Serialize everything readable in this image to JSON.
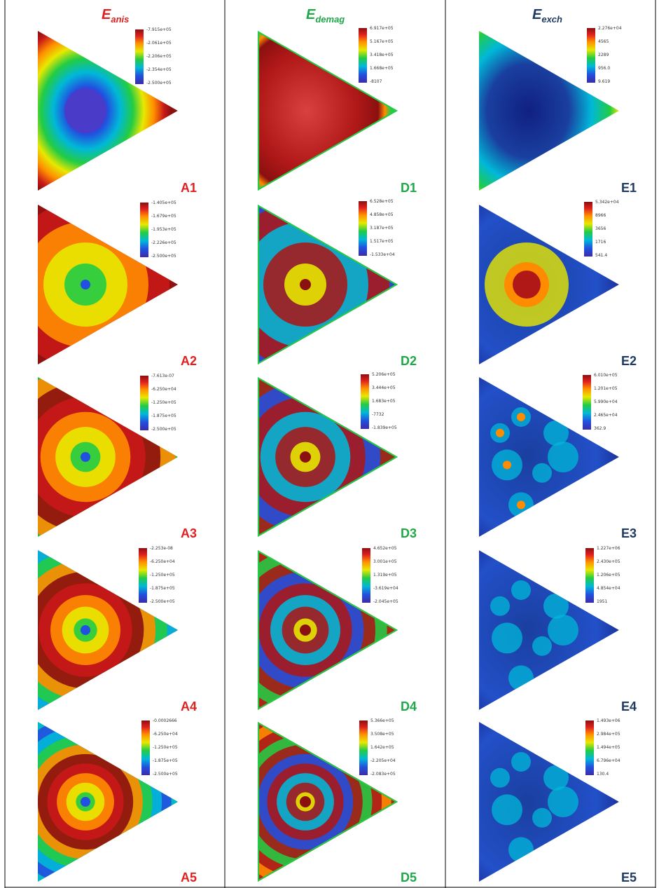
{
  "columns": [
    {
      "sym": "E",
      "sub": "anis",
      "color": "#e02020",
      "panels": [
        {
          "label": "A1",
          "ticks": [
            "-7.915e+05",
            "-2.061e+05",
            "-2.206e+05",
            "-2.354e+05",
            "-2.500e+05"
          ]
        },
        {
          "label": "A2",
          "ticks": [
            "-1.405e+05",
            "-1.679e+05",
            "-1.953e+05",
            "-2.226e+05",
            "-2.500e+05"
          ]
        },
        {
          "label": "A3",
          "ticks": [
            "-7.613e-07",
            "-6.250e+04",
            "-1.250e+05",
            "-1.875e+05",
            "-2.500e+05"
          ]
        },
        {
          "label": "A4",
          "ticks": [
            "-2.253e-08",
            "-6.250e+04",
            "-1.250e+05",
            "-1.875e+05",
            "-2.500e+05"
          ]
        },
        {
          "label": "A5",
          "ticks": [
            "-0.0002666",
            "-6.250e+04",
            "-1.250e+05",
            "-1.875e+05",
            "-2.500e+05"
          ]
        }
      ]
    },
    {
      "sym": "E",
      "sub": "demag",
      "color": "#1fa84a",
      "panels": [
        {
          "label": "D1",
          "ticks": [
            "6.917e+05",
            "5.167e+05",
            "3.418e+05",
            "1.668e+05",
            "-8107"
          ]
        },
        {
          "label": "D2",
          "ticks": [
            "6.528e+05",
            "4.858e+05",
            "3.187e+05",
            "1.517e+05",
            "-1.533e+04"
          ]
        },
        {
          "label": "D3",
          "ticks": [
            "5.206e+05",
            "3.444e+05",
            "1.683e+05",
            "-7732",
            "-1.839e+05"
          ]
        },
        {
          "label": "D4",
          "ticks": [
            "4.652e+05",
            "3.001e+05",
            "1.319e+05",
            "-3.619e+04",
            "-2.045e+05"
          ]
        },
        {
          "label": "D5",
          "ticks": [
            "5.366e+05",
            "3.508e+05",
            "1.642e+05",
            "-2.205e+04",
            "-2.083e+05"
          ]
        }
      ]
    },
    {
      "sym": "E",
      "sub": "exch",
      "color": "#1f3a63",
      "panels": [
        {
          "label": "E1",
          "ticks": [
            "2.276e+04",
            "4565",
            "2289",
            "956.0",
            "9.619"
          ]
        },
        {
          "label": "E2",
          "ticks": [
            "5.342e+04",
            "8966",
            "3656",
            "1716",
            "541.4"
          ]
        },
        {
          "label": "E3",
          "ticks": [
            "6.010e+05",
            "1.201e+05",
            "5.990e+04",
            "2.465e+04",
            "362.9"
          ]
        },
        {
          "label": "E4",
          "ticks": [
            "1.227e+06",
            "2.430e+05",
            "1.206e+05",
            "4.854e+04",
            "1951"
          ]
        },
        {
          "label": "E5",
          "ticks": [
            "1.493e+06",
            "2.984e+05",
            "1.494e+05",
            "6.796e+04",
            "130.4"
          ]
        }
      ]
    }
  ],
  "colormap": [
    "#3b2ba8",
    "#2250e0",
    "#00b8d8",
    "#22cc44",
    "#e8e800",
    "#ff8c00",
    "#e02020",
    "#8b1010"
  ]
}
